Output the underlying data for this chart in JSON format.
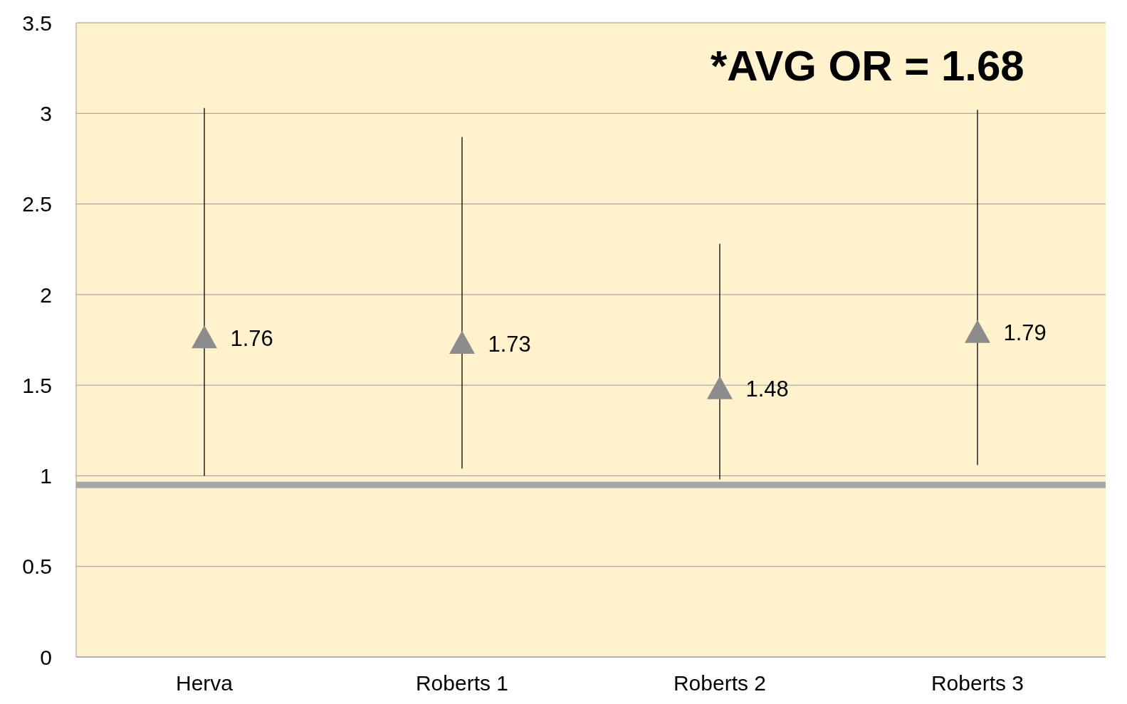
{
  "chart_data": {
    "type": "scatter",
    "categories": [
      "Herva",
      "Roberts 1",
      "Roberts 2",
      "Roberts 3"
    ],
    "values": [
      1.76,
      1.73,
      1.48,
      1.79
    ],
    "errors": [
      [
        1.0,
        3.03
      ],
      [
        1.04,
        2.87
      ],
      [
        0.98,
        2.28
      ],
      [
        1.06,
        3.02
      ]
    ],
    "color": "#8c8c8c",
    "marker": "triangle",
    "data_labels": true,
    "ylim": [
      0,
      3.5
    ],
    "yticks": [
      0,
      0.5,
      1,
      1.5,
      2,
      2.5,
      3,
      3.5
    ],
    "grid": "y",
    "ref_lines": [
      {
        "axis": "y",
        "value": 0.95,
        "color": "#a6a6a6"
      }
    ],
    "annotations": [
      "*AVG OR = 1.68"
    ],
    "legend": false
  }
}
